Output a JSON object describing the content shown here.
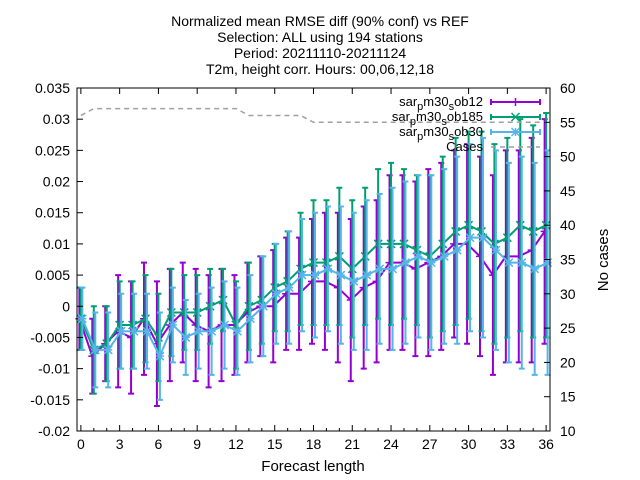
{
  "title_lines": [
    "Normalized mean RMSE diff (90% conf) vs REF",
    "Selection: ALL using   194 stations",
    "Period: 20211110-20211124",
    "T2m, height corr.   Hours: 00,06,12,18"
  ],
  "chart_data": {
    "type": "line",
    "title": "Normalized mean RMSE diff (90% conf) vs REF",
    "xlabel": "Forecast length",
    "ylabel": "",
    "y2label": "No cases",
    "xlim": [
      -0.3,
      36.3
    ],
    "ylim": [
      -0.02,
      0.035
    ],
    "y2lim": [
      10,
      60
    ],
    "x_ticks": [
      "0",
      "3",
      "6",
      "9",
      "12",
      "15",
      "18",
      "21",
      "24",
      "27",
      "30",
      "33",
      "36"
    ],
    "y_ticks": [
      "-0.02",
      "-0.015",
      "-0.01",
      "-0.005",
      "0",
      "0.005",
      "0.01",
      "0.015",
      "0.02",
      "0.025",
      "0.03",
      "0.035"
    ],
    "y2_ticks": [
      "10",
      "15",
      "20",
      "25",
      "30",
      "35",
      "40",
      "45",
      "50",
      "55",
      "60"
    ],
    "grid": false,
    "legend_position": "top-right",
    "x": [
      0,
      1,
      2,
      3,
      4,
      5,
      6,
      7,
      8,
      9,
      10,
      11,
      12,
      13,
      14,
      15,
      16,
      17,
      18,
      19,
      20,
      21,
      22,
      23,
      24,
      25,
      26,
      27,
      28,
      29,
      30,
      31,
      32,
      33,
      34,
      35,
      36
    ],
    "series": [
      {
        "name": "sar_pm30_sob12",
        "legend_main": "sar",
        "legend_sub1": "p",
        "legend_mid": "m30",
        "legend_sub2": "s",
        "legend_end": "ob12",
        "color": "#9400d3",
        "marker": "plus",
        "values": [
          -0.002,
          -0.008,
          -0.006,
          -0.004,
          -0.005,
          -0.002,
          -0.006,
          -0.003,
          -0.001,
          -0.003,
          -0.004,
          -0.003,
          -0.003,
          -0.001,
          0.0,
          0.0,
          0.002,
          0.002,
          0.004,
          0.004,
          0.003,
          0.001,
          0.003,
          0.004,
          0.007,
          0.007,
          0.006,
          0.007,
          0.008,
          0.01,
          0.01,
          0.008,
          0.005,
          0.008,
          0.008,
          0.009,
          0.012
        ],
        "err": [
          0.005,
          0.006,
          0.006,
          0.009,
          0.009,
          0.009,
          0.01,
          0.009,
          0.008,
          0.009,
          0.009,
          0.009,
          0.008,
          0.008,
          0.008,
          0.009,
          0.009,
          0.009,
          0.01,
          0.011,
          0.012,
          0.013,
          0.013,
          0.013,
          0.014,
          0.014,
          0.014,
          0.015,
          0.015,
          0.015,
          0.016,
          0.016,
          0.016,
          0.017,
          0.017,
          0.018,
          0.018
        ]
      },
      {
        "name": "sar_pm30_sob185",
        "legend_main": "sar",
        "legend_sub1": "p",
        "legend_mid": "m30",
        "legend_sub2": "s",
        "legend_end": "ob185",
        "color": "#009e73",
        "marker": "cross",
        "values": [
          -0.002,
          -0.007,
          -0.006,
          -0.003,
          -0.003,
          -0.002,
          -0.005,
          -0.001,
          -0.001,
          -0.001,
          0.0,
          0.001,
          -0.003,
          0.0,
          0.001,
          0.003,
          0.004,
          0.006,
          0.007,
          0.007,
          0.008,
          0.006,
          0.008,
          0.01,
          0.01,
          0.01,
          0.009,
          0.008,
          0.01,
          0.012,
          0.013,
          0.012,
          0.01,
          0.011,
          0.013,
          0.012,
          0.013
        ],
        "err": [
          0.005,
          0.007,
          0.006,
          0.007,
          0.007,
          0.007,
          0.007,
          0.007,
          0.006,
          0.006,
          0.006,
          0.005,
          0.007,
          0.007,
          0.007,
          0.007,
          0.008,
          0.009,
          0.01,
          0.01,
          0.011,
          0.011,
          0.011,
          0.012,
          0.013,
          0.012,
          0.012,
          0.013,
          0.014,
          0.015,
          0.015,
          0.016,
          0.016,
          0.016,
          0.017,
          0.017,
          0.018
        ]
      },
      {
        "name": "sar_pm30_sob30",
        "legend_main": "sar",
        "legend_sub1": "p",
        "legend_mid": "m30",
        "legend_sub2": "s",
        "legend_end": "ob30",
        "color": "#56b4e9",
        "marker": "star",
        "values": [
          -0.002,
          -0.007,
          -0.007,
          -0.004,
          -0.004,
          -0.004,
          -0.008,
          -0.003,
          -0.005,
          -0.004,
          -0.004,
          -0.003,
          -0.004,
          -0.002,
          0.0,
          0.002,
          0.003,
          0.005,
          0.005,
          0.006,
          0.005,
          0.004,
          0.005,
          0.006,
          0.006,
          0.007,
          0.008,
          0.007,
          0.008,
          0.009,
          0.011,
          0.011,
          0.009,
          0.007,
          0.007,
          0.006,
          0.007
        ],
        "err": [
          0.005,
          0.006,
          0.006,
          0.006,
          0.006,
          0.006,
          0.007,
          0.006,
          0.006,
          0.006,
          0.007,
          0.007,
          0.007,
          0.007,
          0.008,
          0.008,
          0.009,
          0.009,
          0.01,
          0.01,
          0.011,
          0.011,
          0.012,
          0.012,
          0.013,
          0.013,
          0.013,
          0.014,
          0.014,
          0.015,
          0.015,
          0.016,
          0.016,
          0.016,
          0.017,
          0.017,
          0.018
        ]
      },
      {
        "name": "Cases",
        "legend_main": "Cases",
        "legend_sub1": "",
        "legend_mid": "",
        "legend_sub2": "",
        "legend_end": "",
        "color": "#a0a0a0",
        "marker": "none",
        "dashed": true,
        "axis": "y2",
        "values": [
          56,
          57,
          57,
          57,
          57,
          57,
          57,
          57,
          57,
          57,
          57,
          57,
          57,
          56,
          56,
          56,
          56,
          56,
          55,
          55,
          55,
          55,
          55,
          55,
          55,
          55,
          55,
          55,
          55,
          55,
          55,
          55,
          55,
          55,
          55,
          55,
          55
        ]
      }
    ]
  }
}
